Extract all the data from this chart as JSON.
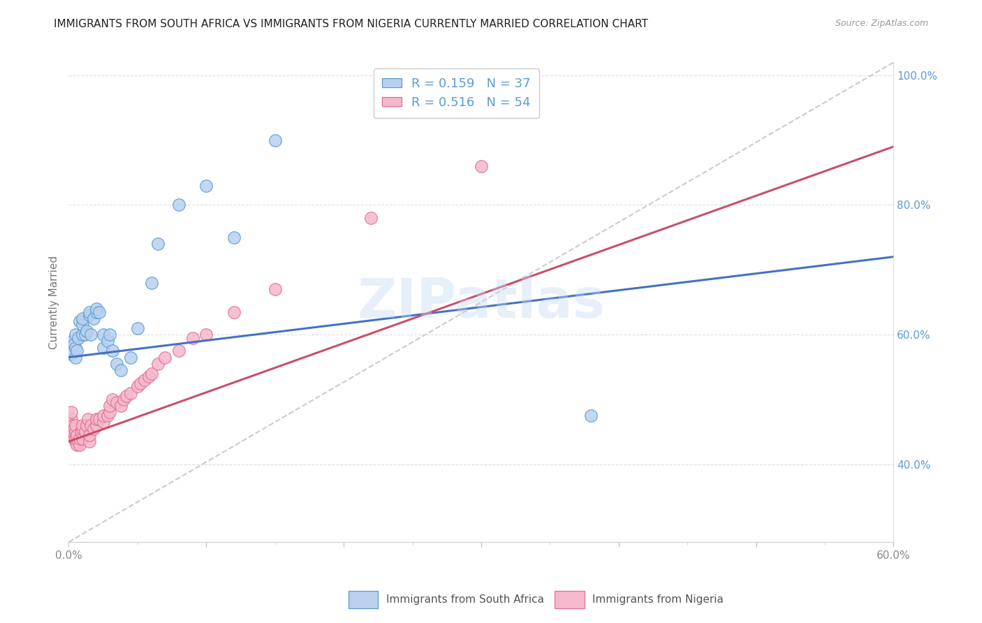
{
  "title": "IMMIGRANTS FROM SOUTH AFRICA VS IMMIGRANTS FROM NIGERIA CURRENTLY MARRIED CORRELATION CHART",
  "source": "Source: ZipAtlas.com",
  "ylabel": "Currently Married",
  "r_blue": 0.159,
  "n_blue": 37,
  "r_pink": 0.516,
  "n_pink": 54,
  "blue_fill": "#b8d0ee",
  "pink_fill": "#f5b8cc",
  "blue_edge": "#5b9bd5",
  "pink_edge": "#e07090",
  "blue_line": "#4472c4",
  "pink_line": "#c8506a",
  "legend_blue_label": "Immigrants from South Africa",
  "legend_pink_label": "Immigrants from Nigeria",
  "watermark": "ZIPatlas",
  "xmin": 0.0,
  "xmax": 0.6,
  "ymin": 0.28,
  "ymax": 1.02,
  "blue_line_x": [
    0.0,
    0.6
  ],
  "blue_line_y": [
    0.565,
    0.72
  ],
  "pink_line_x": [
    0.0,
    0.6
  ],
  "pink_line_y": [
    0.435,
    0.89
  ],
  "ref_line_x": [
    0.0,
    0.6
  ],
  "ref_line_y": [
    0.28,
    1.02
  ],
  "blue_scatter_x": [
    0.002,
    0.003,
    0.004,
    0.005,
    0.005,
    0.005,
    0.006,
    0.007,
    0.008,
    0.01,
    0.01,
    0.01,
    0.012,
    0.013,
    0.015,
    0.015,
    0.016,
    0.018,
    0.02,
    0.02,
    0.022,
    0.025,
    0.025,
    0.028,
    0.03,
    0.032,
    0.035,
    0.038,
    0.045,
    0.05,
    0.06,
    0.065,
    0.08,
    0.1,
    0.12,
    0.15,
    0.38
  ],
  "blue_scatter_y": [
    0.57,
    0.59,
    0.585,
    0.565,
    0.58,
    0.6,
    0.575,
    0.595,
    0.62,
    0.6,
    0.615,
    0.625,
    0.6,
    0.605,
    0.63,
    0.635,
    0.6,
    0.625,
    0.635,
    0.64,
    0.635,
    0.6,
    0.58,
    0.59,
    0.6,
    0.575,
    0.555,
    0.545,
    0.565,
    0.61,
    0.68,
    0.74,
    0.8,
    0.83,
    0.75,
    0.9,
    0.475
  ],
  "pink_scatter_x": [
    0.002,
    0.002,
    0.003,
    0.003,
    0.004,
    0.004,
    0.005,
    0.005,
    0.005,
    0.005,
    0.006,
    0.006,
    0.007,
    0.008,
    0.008,
    0.009,
    0.01,
    0.01,
    0.01,
    0.012,
    0.013,
    0.014,
    0.015,
    0.015,
    0.016,
    0.018,
    0.02,
    0.02,
    0.022,
    0.025,
    0.025,
    0.028,
    0.03,
    0.03,
    0.032,
    0.035,
    0.038,
    0.04,
    0.042,
    0.045,
    0.05,
    0.052,
    0.055,
    0.058,
    0.06,
    0.065,
    0.07,
    0.08,
    0.09,
    0.1,
    0.12,
    0.15,
    0.22,
    0.3
  ],
  "pink_scatter_y": [
    0.47,
    0.48,
    0.45,
    0.46,
    0.44,
    0.455,
    0.435,
    0.44,
    0.45,
    0.46,
    0.43,
    0.445,
    0.435,
    0.43,
    0.44,
    0.45,
    0.44,
    0.455,
    0.46,
    0.45,
    0.46,
    0.47,
    0.435,
    0.445,
    0.46,
    0.455,
    0.46,
    0.47,
    0.47,
    0.465,
    0.475,
    0.475,
    0.48,
    0.49,
    0.5,
    0.495,
    0.49,
    0.5,
    0.505,
    0.51,
    0.52,
    0.525,
    0.53,
    0.535,
    0.54,
    0.555,
    0.565,
    0.575,
    0.595,
    0.6,
    0.635,
    0.67,
    0.78,
    0.86
  ]
}
